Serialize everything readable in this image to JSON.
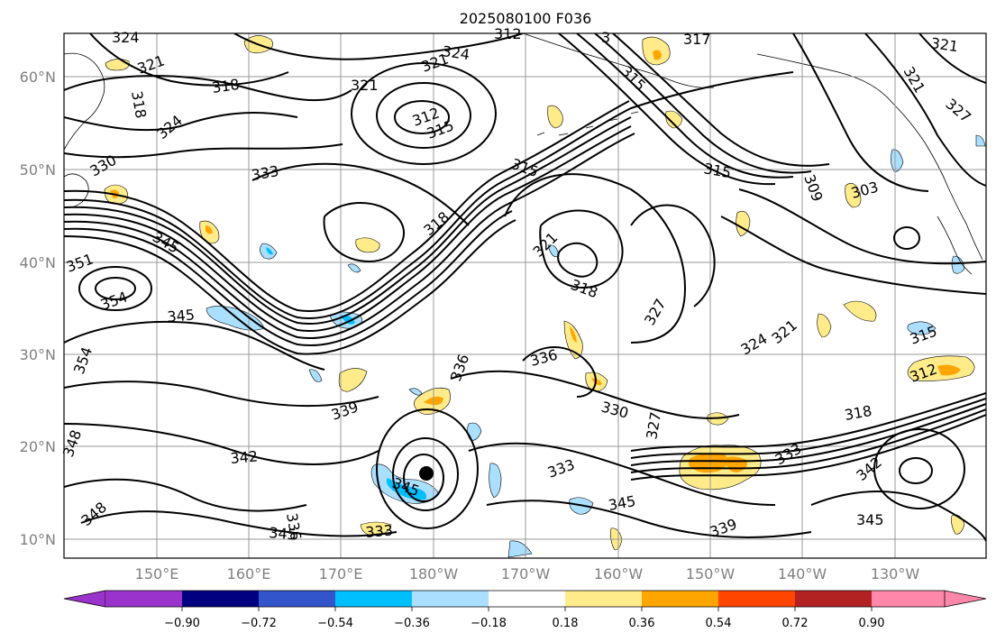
{
  "figure": {
    "title": "2025080100 F036"
  },
  "map": {
    "lat_labels": [
      "60°N",
      "50°N",
      "40°N",
      "30°N",
      "20°N",
      "10°N"
    ],
    "lon_labels": [
      "150°E",
      "160°E",
      "170°E",
      "180°W",
      "170°W",
      "160°W",
      "150°W",
      "140°W",
      "130°W"
    ],
    "contour_field": "black isentropic contours",
    "contour_labels": [
      "324",
      "321",
      "318",
      "312",
      "324",
      "321",
      "3",
      "317",
      "321",
      "318",
      "324",
      "321",
      "315",
      "312",
      "315",
      "321",
      "327",
      "330",
      "333",
      "315",
      "315",
      "309",
      "303",
      "318",
      "345",
      "351",
      "354",
      "345",
      "321",
      "318",
      "327",
      "336",
      "324",
      "321",
      "315",
      "354",
      "339",
      "336",
      "312",
      "330",
      "327",
      "318",
      "348",
      "342",
      "333",
      "333",
      "342",
      "345",
      "336",
      "345",
      "333",
      "345",
      "339",
      "345",
      "348"
    ],
    "shaded_field_colors": {
      "lt_-0.90": "#9933cc",
      "-0.90_-0.72": "#000080",
      "-0.72_-0.54": "#3355cc",
      "-0.54_-0.36": "#00bfff",
      "-0.36_-0.18": "#abdfff",
      "-0.18_0.18": "#ffffff",
      "0.18_0.36": "#ffeb8a",
      "0.36_0.54": "#ffa500",
      "0.54_0.72": "#ff4500",
      "0.72_0.90": "#b22222",
      "gt_0.90": "#ff88aa"
    },
    "marker": "tropical cyclone position dot"
  },
  "colorbar": {
    "ticks": [
      "−0.90",
      "−0.72",
      "−0.54",
      "−0.36",
      "−0.18",
      "0.18",
      "0.36",
      "0.54",
      "0.72",
      "0.90"
    ],
    "colors": [
      "#9933cc",
      "#000080",
      "#3355cc",
      "#00bfff",
      "#abdfff",
      "#ffffff",
      "#ffeb8a",
      "#ffa500",
      "#ff4500",
      "#b22222",
      "#ff88aa"
    ]
  }
}
